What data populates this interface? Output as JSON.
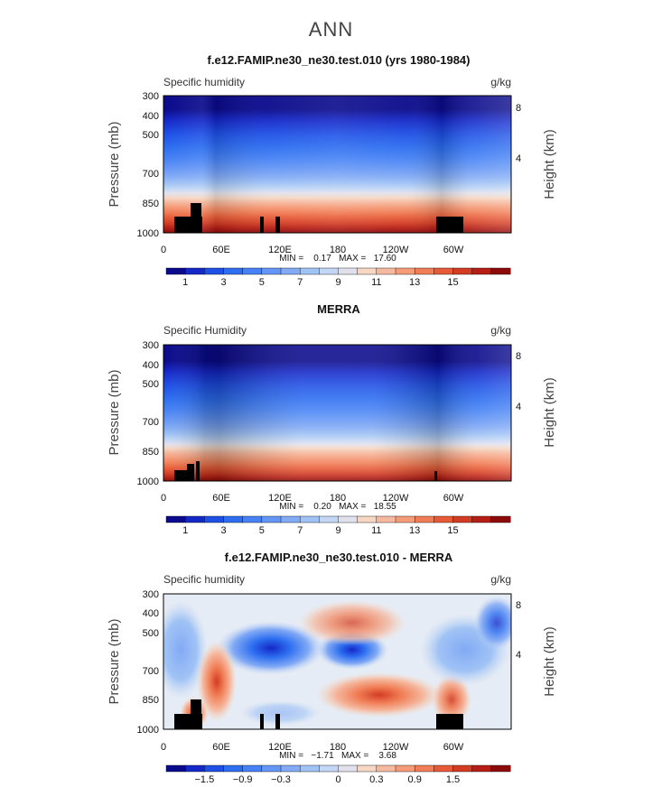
{
  "page_title": "ANN",
  "colors": {
    "specific_humidity_ramp": [
      "#0a0a8c",
      "#1428c8",
      "#1e50e6",
      "#2d6ef0",
      "#4682f5",
      "#6496f5",
      "#82aaf5",
      "#a0c3f5",
      "#c3d7f5",
      "#e1e1ee",
      "#f5d7c3",
      "#f5b9a0",
      "#f59b78",
      "#f07d55",
      "#e65a37",
      "#d23c23",
      "#b41e14",
      "#8c0a0a"
    ],
    "difference_ramp": [
      "#0a0a8c",
      "#1428c8",
      "#1e50e6",
      "#2d6ef0",
      "#4682f5",
      "#6496f5",
      "#82aaf5",
      "#a0c3f5",
      "#c3d7f5",
      "#e1e1ee",
      "#f5d7c3",
      "#f5b9a0",
      "#f59b78",
      "#f07d55",
      "#e65a37",
      "#d23c23",
      "#b41e14",
      "#8c0a0a"
    ]
  },
  "chart_data": [
    {
      "type": "heatmap",
      "title": "f.e12.FAMIP.ne30_ne30.test.010 (yrs 1980-1984)",
      "left_label": "Specific humidity",
      "units": "g/kg",
      "ylabel": "Pressure (mb)",
      "ylabel_right": "Height (km)",
      "x_ticks": [
        "0",
        "60E",
        "120E",
        "180",
        "120W",
        "60W"
      ],
      "y_ticks": [
        "300",
        "400",
        "500",
        "700",
        "850",
        "1000"
      ],
      "y_right_ticks": [
        "8",
        "4"
      ],
      "stats": "MIN =    0.17   MAX =   17.60",
      "colorbar_labels": [
        "1",
        "3",
        "5",
        "7",
        "9",
        "11",
        "13",
        "15"
      ]
    },
    {
      "type": "heatmap",
      "title": "MERRA",
      "left_label": "Specific Humidity",
      "units": "g/kg",
      "ylabel": "Pressure (mb)",
      "ylabel_right": "Height (km)",
      "x_ticks": [
        "0",
        "60E",
        "120E",
        "180",
        "120W",
        "60W"
      ],
      "y_ticks": [
        "300",
        "400",
        "500",
        "700",
        "850",
        "1000"
      ],
      "y_right_ticks": [
        "8",
        "4"
      ],
      "stats": "MIN =    0.20   MAX =   18.55",
      "colorbar_labels": [
        "1",
        "3",
        "5",
        "7",
        "9",
        "11",
        "13",
        "15"
      ]
    },
    {
      "type": "heatmap",
      "title": "f.e12.FAMIP.ne30_ne30.test.010 - MERRA",
      "left_label": "Specific humidity",
      "units": "g/kg",
      "ylabel": "Pressure (mb)",
      "ylabel_right": "Height (km)",
      "x_ticks": [
        "0",
        "60E",
        "120E",
        "180",
        "120W",
        "60W"
      ],
      "y_ticks": [
        "300",
        "400",
        "500",
        "700",
        "850",
        "1000"
      ],
      "y_right_ticks": [
        "8",
        "4"
      ],
      "stats": "MIN =   −1.71   MAX =    3.68",
      "colorbar_labels": [
        "−1.5",
        "−0.9",
        "−0.3",
        "0",
        "0.3",
        "0.9",
        "1.5"
      ]
    }
  ]
}
